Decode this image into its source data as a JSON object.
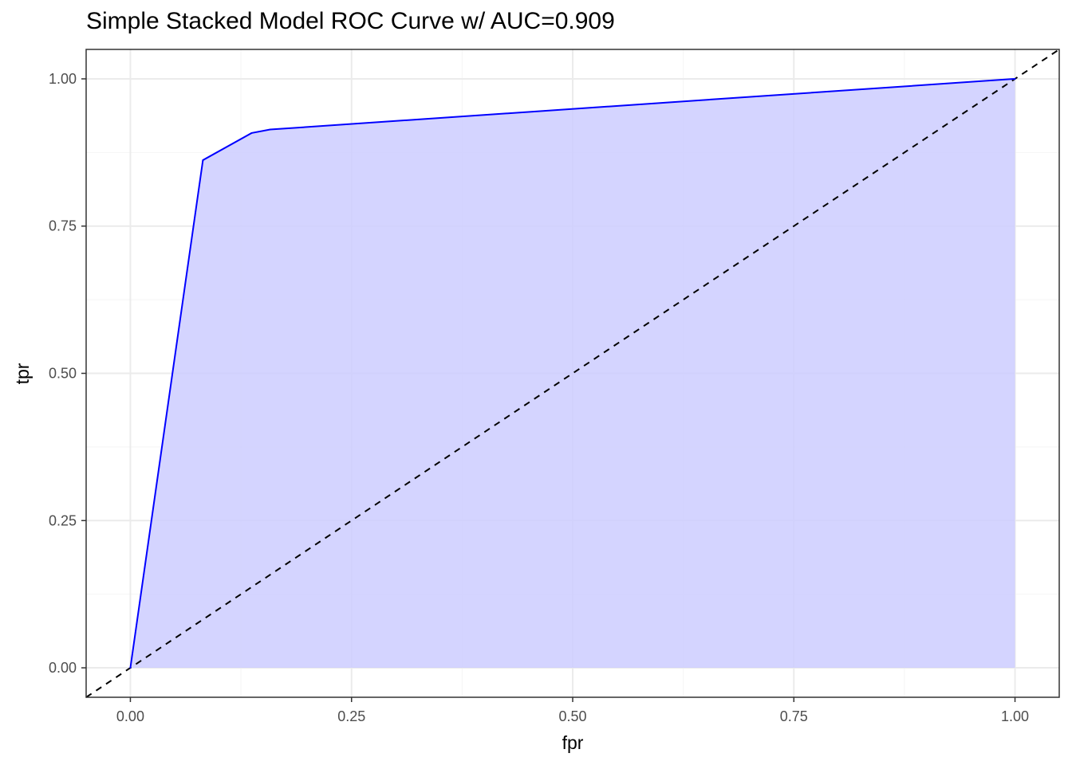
{
  "chart_data": {
    "type": "area",
    "title": "Simple Stacked Model ROC Curve w/ AUC=0.909",
    "xlabel": "fpr",
    "ylabel": "tpr",
    "xlim": [
      -0.05,
      1.05
    ],
    "ylim": [
      -0.05,
      1.05
    ],
    "x_ticks": [
      "0.00",
      "0.25",
      "0.50",
      "0.75",
      "1.00"
    ],
    "y_ticks": [
      "0.00",
      "0.25",
      "0.50",
      "0.75",
      "1.00"
    ],
    "grid": true,
    "curve": {
      "x": [
        0.0,
        0.082,
        0.137,
        0.158,
        1.0
      ],
      "y": [
        0.0,
        0.862,
        0.908,
        0.914,
        1.0
      ]
    },
    "reference_line": {
      "x": [
        -0.05,
        1.05
      ],
      "y": [
        -0.05,
        1.05
      ],
      "style": "dashed"
    },
    "colors": {
      "curve": "#0000ff",
      "fill": "#ccccff",
      "reference": "#000000",
      "grid_major": "#ebebeb",
      "grid_minor": "#f5f5f5",
      "panel_border": "#333333"
    }
  }
}
